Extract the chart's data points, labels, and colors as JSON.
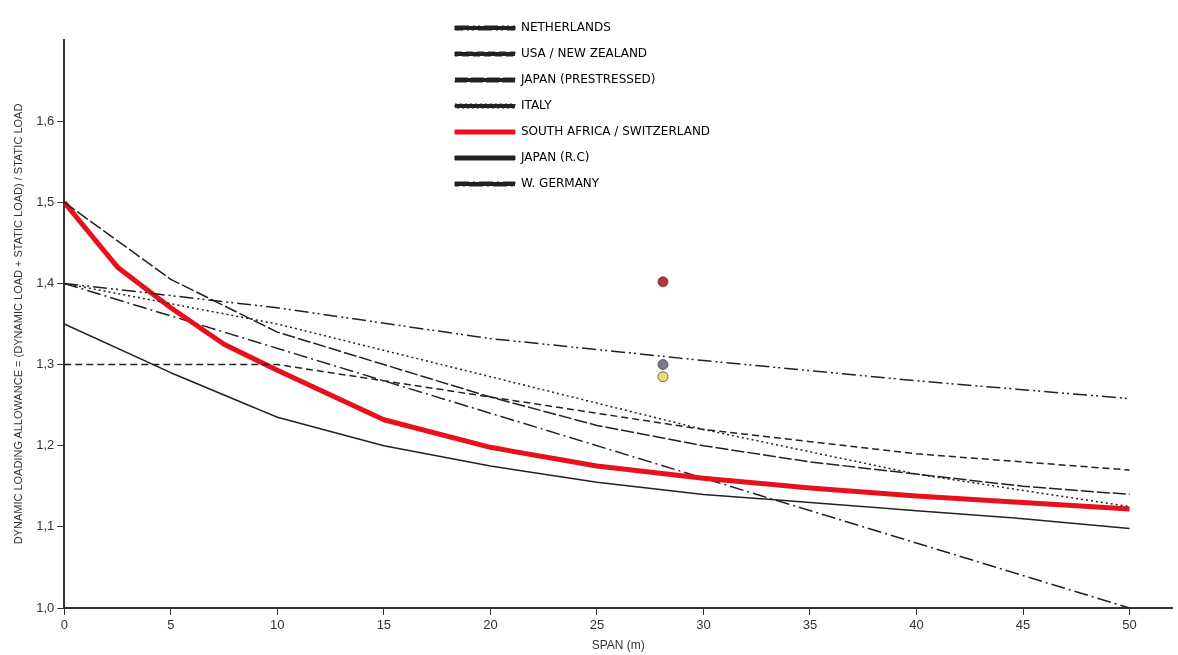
{
  "chart_data": {
    "type": "line",
    "xlabel": "SPAN (m)",
    "ylabel": "DYNAMIC LOADING ALLOWANCE = (DYNAMIC LOAD + STATIC LOAD) / STATIC LOAD",
    "xlim": [
      0,
      52
    ],
    "xticks": [
      0,
      5,
      10,
      15,
      20,
      25,
      30,
      35,
      40,
      45,
      50
    ],
    "ylim": [
      1.0,
      1.7
    ],
    "yticks": [
      {
        "value": 1.0,
        "label": "1,0"
      },
      {
        "value": 1.1,
        "label": "1,1"
      },
      {
        "value": 1.2,
        "label": "1,2"
      },
      {
        "value": 1.3,
        "label": "1,3"
      },
      {
        "value": 1.4,
        "label": "1,4"
      },
      {
        "value": 1.5,
        "label": "1,5"
      },
      {
        "value": 1.6,
        "label": "1,6"
      }
    ],
    "grid": false,
    "legend": "top",
    "marker": "none",
    "series": [
      {
        "name": "NETHERLANDS",
        "color": "#222222",
        "line_style": "dashdotdot",
        "x": [
          0,
          10,
          20,
          30,
          40,
          50
        ],
        "values": [
          1.4,
          1.37,
          1.332,
          1.305,
          1.28,
          1.258
        ]
      },
      {
        "name": "USA / NEW ZEALAND",
        "color": "#222222",
        "line_style": "dashed",
        "x": [
          0,
          10,
          15,
          20,
          25,
          30,
          35,
          40,
          45,
          50
        ],
        "values": [
          1.3,
          1.3,
          1.28,
          1.26,
          1.24,
          1.22,
          1.205,
          1.19,
          1.18,
          1.17
        ]
      },
      {
        "name": "JAPAN (PRESTRESSED)",
        "color": "#222222",
        "line_style": "longdash",
        "x": [
          0,
          5,
          10,
          15,
          20,
          25,
          30,
          35,
          40,
          45,
          50
        ],
        "values": [
          1.5,
          1.405,
          1.34,
          1.3,
          1.26,
          1.225,
          1.2,
          1.18,
          1.165,
          1.15,
          1.14
        ]
      },
      {
        "name": "ITALY",
        "color": "#222222",
        "line_style": "dotted",
        "x": [
          0,
          10,
          20,
          30,
          40,
          50
        ],
        "values": [
          1.4,
          1.35,
          1.285,
          1.22,
          1.165,
          1.125
        ]
      },
      {
        "name": "SOUTH AFRICA / SWITZERLAND",
        "color": "#e8101c",
        "line_style": "solid",
        "x": [
          0,
          2.5,
          5,
          7.5,
          10,
          15,
          20,
          25,
          30,
          35,
          40,
          45,
          50
        ],
        "values": [
          1.5,
          1.42,
          1.37,
          1.325,
          1.293,
          1.232,
          1.198,
          1.175,
          1.16,
          1.148,
          1.138,
          1.13,
          1.122
        ]
      },
      {
        "name": "JAPAN (R.C)",
        "color": "#222222",
        "line_style": "solid",
        "x": [
          0,
          5,
          10,
          15,
          20,
          25,
          30,
          35,
          40,
          45,
          50
        ],
        "values": [
          1.35,
          1.29,
          1.235,
          1.2,
          1.175,
          1.155,
          1.14,
          1.13,
          1.12,
          1.11,
          1.098
        ]
      },
      {
        "name": "W. GERMANY",
        "color": "#222222",
        "line_style": "dashdot",
        "x": [
          0,
          50
        ],
        "values": [
          1.4,
          1.0
        ]
      },
      {
        "type": "scatter",
        "marker": "circle",
        "x": [
          28.1,
          28.1,
          28.1
        ],
        "values": [
          1.402,
          1.3,
          1.285
        ],
        "colors": [
          "#c0303a",
          "#7a7a8a",
          "#e8e070"
        ]
      }
    ]
  }
}
